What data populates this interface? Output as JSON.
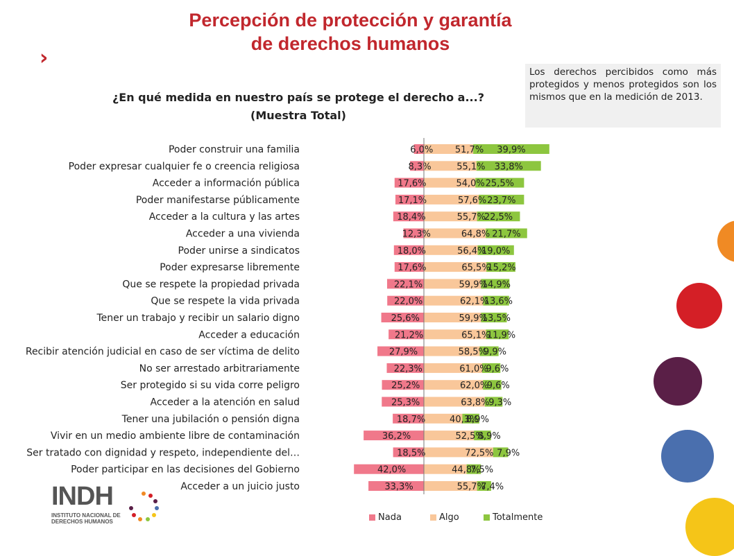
{
  "header": {
    "title_line1": "Percepción de protección y garantía",
    "title_line2": "de derechos humanos",
    "chevron": "›"
  },
  "question": {
    "line1": "¿En qué medida en nuestro país se protege el derecho a...?",
    "line2": "(Muestra Total)"
  },
  "note": "Los derechos percibidos como más protegidos y menos protegidos son los mismos que en la medición de 2013.",
  "logo": {
    "text": "INDH",
    "subtitle": "INSTITUTO NACIONAL DE\nDERECHOS HUMANOS"
  },
  "colors": {
    "nada": "#f0788a",
    "algo": "#f9c79a",
    "totalmente": "#8dc63f",
    "accent": "#c1272d"
  },
  "chart_data": {
    "type": "bar",
    "orientation": "horizontal",
    "stacked": "diverging",
    "legend_position": "bottom",
    "categories": [
      "Poder construir una familia",
      "Poder expresar cualquier fe o creencia religiosa",
      "Acceder a información pública",
      "Poder manifestarse públicamente",
      "Acceder a la cultura y las artes",
      "Acceder a una vivienda",
      "Poder unirse a sindicatos",
      "Poder expresarse libremente",
      "Que se respete la propiedad privada",
      "Que se respete la vida privada",
      "Tener un trabajo y recibir un salario digno",
      "Acceder a educación",
      "Recibir atención judicial en caso de ser víctima de delito",
      "No ser arrestado arbitrariamente",
      "Ser protegido si su vida corre peligro",
      "Acceder a la atención en salud",
      "Tener una jubilación o pensión digna",
      "Vivir en un medio ambiente libre de contaminación",
      "Ser tratado con dignidad y respeto, independiente del…",
      "Poder participar en las decisiones del Gobierno",
      "Acceder a un juicio justo"
    ],
    "series": [
      {
        "name": "Nada",
        "values": [
          6.0,
          8.3,
          17.6,
          17.1,
          18.4,
          12.3,
          18.0,
          17.6,
          22.1,
          22.0,
          25.6,
          21.2,
          27.9,
          22.3,
          25.2,
          25.3,
          18.7,
          36.2,
          18.5,
          42.0,
          33.3
        ],
        "labels": [
          "6,0%",
          "8,3%",
          "17,6%",
          "17,1%",
          "18,4%",
          "12,3%",
          "18,0%",
          "17,6%",
          "22,1%",
          "22,0%",
          "25,6%",
          "21,2%",
          "27,9%",
          "22,3%",
          "25,2%",
          "25,3%",
          "18,7%",
          "36,2%",
          "18,5%",
          "42,0%",
          "33,3%"
        ]
      },
      {
        "name": "Algo",
        "values": [
          51.7,
          55.1,
          54.0,
          57.6,
          55.7,
          64.8,
          56.4,
          65.5,
          59.9,
          62.1,
          59.9,
          65.1,
          58.5,
          61.0,
          62.0,
          63.8,
          40.3,
          52.5,
          72.5,
          44.8,
          55.7
        ],
        "labels": [
          "51,7%",
          "55,1%",
          "54,0%",
          "57,6%",
          "55,7%",
          "64,8%",
          "56,4%",
          "65,5%",
          "59,9%",
          "62,1%",
          "59,9%",
          "65,1%",
          "58,5%",
          "61,0%",
          "62,0%",
          "63,8%",
          "40,3%",
          "52,5%",
          "72,5%",
          "44,8%",
          "55,7%"
        ]
      },
      {
        "name": "Totalmente",
        "values": [
          39.9,
          33.8,
          25.5,
          23.7,
          22.5,
          21.7,
          19.0,
          15.2,
          14.9,
          13.6,
          13.5,
          11.9,
          9.9,
          9.6,
          9.6,
          9.3,
          8.9,
          8.9,
          7.9,
          7.5,
          7.4
        ],
        "labels": [
          "39,9%",
          "33,8%",
          "25,5%",
          "23,7%",
          "22,5%",
          "21,7%",
          "19,0%",
          "15,2%",
          "14,9%",
          "13,6%",
          "13,5%",
          "11,9%",
          "9,9%",
          "9,6%",
          "9,6%",
          "9,3%",
          "8,9%",
          "8,9%",
          "7,9%",
          "7,5%",
          "7,4%"
        ]
      }
    ]
  }
}
